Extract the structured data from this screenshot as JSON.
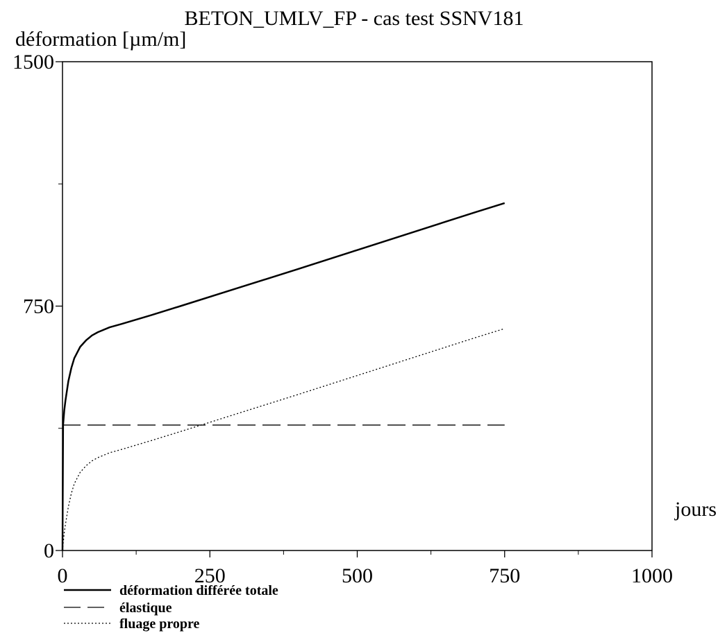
{
  "chart_data": {
    "type": "line",
    "title": "BETON_UMLV_FP - cas test SSNV181",
    "xlabel": "jours",
    "ylabel": "déformation [µm/m]",
    "xlim": [
      0,
      1000
    ],
    "ylim": [
      0,
      1500
    ],
    "x_ticks": [
      "0",
      "250",
      "500",
      "750",
      "1000"
    ],
    "y_ticks": [
      "0",
      "750",
      "1500"
    ],
    "grid": false,
    "legend_position": "bottom-left",
    "series": [
      {
        "name": "déformation différée totale",
        "style": "solid",
        "x": [
          0,
          1,
          3,
          5,
          10,
          15,
          20,
          30,
          40,
          50,
          60,
          80,
          100,
          150,
          200,
          300,
          400,
          500,
          600,
          700,
          750
        ],
        "y": [
          0,
          385,
          430,
          460,
          520,
          560,
          590,
          625,
          645,
          660,
          670,
          685,
          695,
          722,
          750,
          807,
          864,
          922,
          980,
          1038,
          1066
        ]
      },
      {
        "name": "élastique",
        "style": "dashed",
        "x": [
          0,
          750
        ],
        "y": [
          385,
          385
        ]
      },
      {
        "name": "fluage propre",
        "style": "dotted",
        "x": [
          0,
          1,
          3,
          5,
          10,
          15,
          20,
          30,
          40,
          50,
          60,
          80,
          100,
          150,
          200,
          300,
          400,
          500,
          600,
          700,
          750
        ],
        "y": [
          0,
          20,
          55,
          80,
          135,
          175,
          205,
          240,
          260,
          275,
          285,
          300,
          310,
          337,
          365,
          422,
          479,
          537,
          595,
          653,
          681
        ]
      }
    ]
  }
}
